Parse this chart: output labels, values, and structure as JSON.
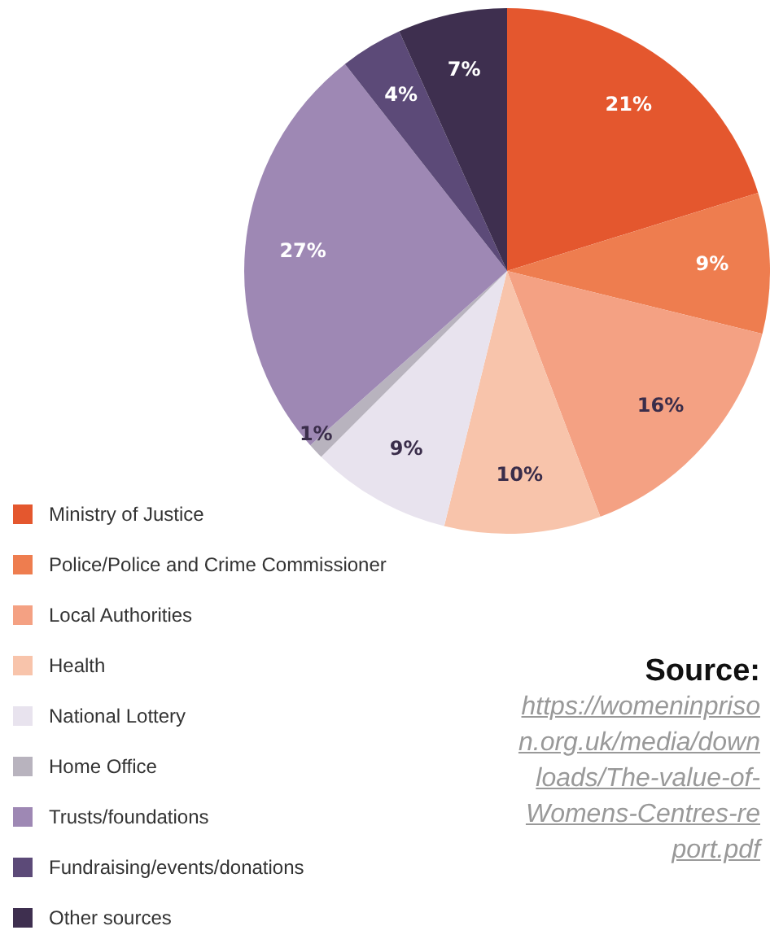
{
  "chart_data": {
    "type": "pie",
    "categories": [
      "Ministry of Justice",
      "Police/Police and Crime Commissioner",
      "Local Authorities",
      "Health",
      "National Lottery",
      "Home Office",
      "Trusts/foundations",
      "Fundraising/events/donations",
      "Other sources"
    ],
    "values": [
      21,
      9,
      16,
      10,
      9,
      1,
      27,
      4,
      7
    ],
    "colors": [
      "#e4572e",
      "#ee7d4f",
      "#f4a183",
      "#f8c4ab",
      "#e8e3ee",
      "#b8b3be",
      "#9e88b4",
      "#5c4a78",
      "#3e2f4f"
    ],
    "value_labels": [
      "21%",
      "9%",
      "16%",
      "10%",
      "9%",
      "1%",
      "27%",
      "4%",
      "7%"
    ],
    "legend": "bottom left",
    "annotations": [
      "Source:",
      "https://womeninprison.org.uk/media/downloads/The-value-of-Womens-Centres-report.pdf"
    ]
  }
}
